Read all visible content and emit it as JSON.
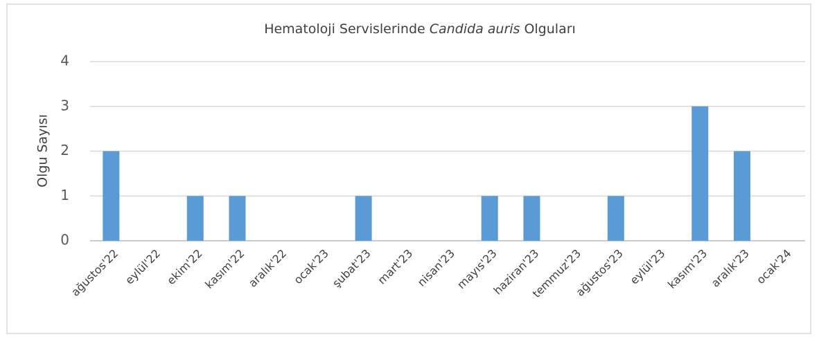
{
  "chart_data": {
    "type": "bar",
    "title": [
      "Hematoloji Servislerinde",
      "Candida auris",
      "Olguları"
    ],
    "y_label": "Olgu Sayısı",
    "categories": [
      "ağustos'22",
      "eylül'22",
      "ekim'22",
      "kasım'22",
      "aralık'22",
      "ocak'23",
      "şubat'23",
      "mart'23",
      "nisan'23",
      "mayıs'23",
      "haziran'23",
      "temmuz'23",
      "ağustos'23",
      "eylül'23",
      "kasım'23",
      "aralık'23",
      "ocak'24"
    ],
    "values": [
      2,
      0,
      1,
      1,
      0,
      0,
      1,
      0,
      0,
      1,
      1,
      0,
      1,
      0,
      3,
      2,
      0
    ],
    "color": "#5b9bd5",
    "ylim": [
      0,
      4
    ],
    "yticks": [
      0,
      1,
      2,
      3,
      4
    ],
    "grid": true
  }
}
